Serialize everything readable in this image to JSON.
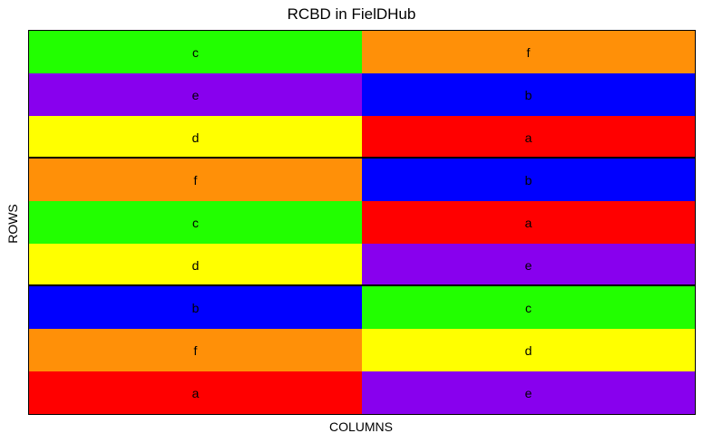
{
  "chart_data": {
    "type": "heatmap",
    "title": "RCBD in FielDHub",
    "xlabel": "COLUMNS",
    "ylabel": "ROWS",
    "columns": 2,
    "rows": 9,
    "blocks": [
      {
        "rows": [
          [
            "c",
            "f"
          ],
          [
            "e",
            "b"
          ],
          [
            "d",
            "a"
          ]
        ]
      },
      {
        "rows": [
          [
            "f",
            "b"
          ],
          [
            "c",
            "a"
          ],
          [
            "d",
            "e"
          ]
        ]
      },
      {
        "rows": [
          [
            "b",
            "c"
          ],
          [
            "f",
            "d"
          ],
          [
            "a",
            "e"
          ]
        ]
      }
    ],
    "treatment_colors": {
      "a": "#ff0000",
      "b": "#0000ff",
      "c": "#22ff00",
      "d": "#ffff00",
      "e": "#8800ee",
      "f": "#ff9008"
    }
  }
}
